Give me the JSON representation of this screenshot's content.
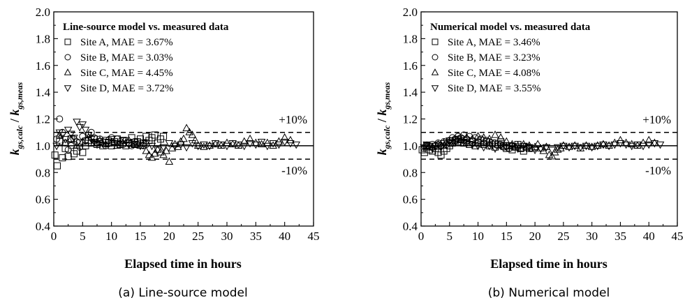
{
  "chart_data": [
    {
      "type": "scatter",
      "title": "Line-source model vs. measured data",
      "caption": "(a) Line-source model",
      "xlabel": "Elapsed time in hours",
      "ylabel_main": "k",
      "ylabel_sub1": "gs,calc",
      "ylabel_sep": " / ",
      "ylabel_sub2": "gs,meas",
      "xlim": [
        0,
        45
      ],
      "ylim": [
        0.4,
        2.0
      ],
      "xticks": [
        "0",
        "5",
        "10",
        "15",
        "20",
        "25",
        "30",
        "35",
        "40",
        "45"
      ],
      "yticks": [
        "0.4",
        "0.6",
        "0.8",
        "1.0",
        "1.2",
        "1.4",
        "1.6",
        "1.8",
        "2.0"
      ],
      "reference_lines": [
        {
          "y": 1.1,
          "style": "dashed",
          "label": "+10%"
        },
        {
          "y": 1.0,
          "style": "solid",
          "label": ""
        },
        {
          "y": 0.9,
          "style": "dashed",
          "label": "-10%"
        }
      ],
      "legend_position": "top-left",
      "series": [
        {
          "name": "Site A,  MAE = 3.67%",
          "marker": "square",
          "x": [
            0.2,
            0.6,
            1.0,
            1.5,
            2.0,
            2.5,
            3.0,
            3.5,
            4.0,
            4.5,
            5.0,
            5.5,
            6.0,
            6.5,
            7.0,
            7.5,
            8.0,
            8.5,
            9.0,
            9.5,
            10,
            10.5,
            11,
            11.5,
            12,
            12.5,
            13,
            13.5,
            14,
            14.5,
            15,
            15.5,
            16,
            16.5,
            17,
            17.5,
            18,
            18.5,
            19
          ],
          "y": [
            0.93,
            0.85,
            1.03,
            0.91,
            0.98,
            0.92,
            1.05,
            0.94,
            0.96,
            1.02,
            0.95,
            1.0,
            1.04,
            1.02,
            1.05,
            1.01,
            1.03,
            1.0,
            1.04,
            1.02,
            1.0,
            1.03,
            1.05,
            1.01,
            1.04,
            1.0,
            1.02,
            1.06,
            1.01,
            1.03,
            1.05,
            1.02,
            1.07,
            1.04,
            1.06,
            1.08,
            1.02,
            1.05,
            1.07
          ]
        },
        {
          "name": "Site B,  MAE = 3.03%",
          "marker": "circle",
          "x": [
            0.5,
            1.0,
            1.5,
            2.0,
            2.5,
            3.0,
            3.5,
            4.0,
            4.5,
            5.0,
            5.5,
            6.0,
            6.5,
            7.0,
            7.5,
            8.0,
            8.5,
            9.0,
            9.5,
            10,
            10.5,
            11,
            11.5,
            12,
            12.5,
            13,
            13.5,
            14,
            14.5,
            15,
            15.5,
            16
          ],
          "y": [
            1.05,
            1.2,
            1.1,
            1.02,
            0.97,
            1.0,
            1.05,
            1.03,
            0.99,
            1.07,
            1.04,
            1.08,
            1.1,
            1.06,
            1.02,
            1.05,
            1.03,
            1.0,
            1.04,
            1.06,
            1.02,
            1.05,
            1.03,
            1.01,
            1.04,
            1.02,
            1.0,
            1.03,
            1.01,
            1.02,
            1.0,
            1.01
          ]
        },
        {
          "name": "Site C,  MAE = 4.45%",
          "marker": "triangle-up",
          "x": [
            1.0,
            2.0,
            3.0,
            4.0,
            5.0,
            6.0,
            7.0,
            8.0,
            9.0,
            10,
            11,
            12,
            13,
            14,
            15,
            16,
            16.5,
            17,
            17.5,
            18,
            18.5,
            19,
            19.5,
            20,
            20.5,
            21,
            21.5,
            22,
            22.5,
            23,
            23.5,
            24,
            24.5,
            25,
            26,
            27,
            28,
            29,
            30,
            31,
            32,
            33,
            34,
            35,
            36,
            37,
            38,
            39,
            40,
            41
          ],
          "y": [
            1.08,
            1.02,
            1.05,
            1.0,
            1.03,
            1.06,
            1.02,
            1.04,
            1.01,
            1.03,
            1.0,
            1.02,
            1.04,
            1.01,
            1.0,
            0.96,
            0.93,
            0.91,
            0.94,
            0.97,
            0.95,
            0.93,
            0.96,
            0.88,
            0.98,
            1.01,
            0.99,
            1.03,
            1.05,
            1.13,
            1.1,
            1.08,
            1.04,
            1.0,
            0.99,
            1.0,
            1.01,
            1.0,
            1.02,
            1.01,
            1.0,
            1.03,
            1.05,
            1.02,
            1.01,
            1.02,
            1.0,
            1.03,
            1.06,
            1.04
          ]
        },
        {
          "name": "Site D,  MAE = 3.72%",
          "marker": "triangle-down",
          "x": [
            0.5,
            1.0,
            1.5,
            2.0,
            2.5,
            3.0,
            3.5,
            4.0,
            4.5,
            5.0,
            5.5,
            6.0,
            6.5,
            7.0,
            7.5,
            8.0,
            9.0,
            10,
            11,
            12,
            13,
            14,
            15,
            16,
            17,
            18,
            19,
            20,
            21,
            22,
            23,
            24,
            25,
            26,
            27,
            28,
            29,
            30,
            31,
            32,
            33,
            34,
            35,
            36,
            37,
            38,
            39,
            40,
            41,
            42
          ],
          "y": [
            1.0,
            1.1,
            1.08,
            1.05,
            1.12,
            1.09,
            1.06,
            1.18,
            1.14,
            1.16,
            1.12,
            1.08,
            1.05,
            1.03,
            1.01,
            1.02,
            1.03,
            1.05,
            1.02,
            1.04,
            1.01,
            1.03,
            1.0,
            1.02,
            1.0,
            0.97,
            0.99,
            1.02,
            1.0,
            1.01,
            0.99,
            1.02,
            1.0,
            1.01,
            1.0,
            1.02,
            1.01,
            1.0,
            1.02,
            1.01,
            1.0,
            1.02,
            1.01,
            1.03,
            1.0,
            1.02,
            1.01,
            1.03,
            1.02,
            1.01
          ]
        }
      ]
    },
    {
      "type": "scatter",
      "title": "Numerical model vs. measured data",
      "caption": "(b) Numerical model",
      "xlabel": "Elapsed time in hours",
      "ylabel_main": "k",
      "ylabel_sub1": "gs,calc",
      "ylabel_sep": " / ",
      "ylabel_sub2": "gs,meas",
      "xlim": [
        0,
        45
      ],
      "ylim": [
        0.4,
        2.0
      ],
      "xticks": [
        "0",
        "5",
        "10",
        "15",
        "20",
        "25",
        "30",
        "35",
        "40",
        "45"
      ],
      "yticks": [
        "0.4",
        "0.6",
        "0.8",
        "1.0",
        "1.2",
        "1.4",
        "1.6",
        "1.8",
        "2.0"
      ],
      "reference_lines": [
        {
          "y": 1.1,
          "style": "dashed",
          "label": "+10%"
        },
        {
          "y": 1.0,
          "style": "solid",
          "label": ""
        },
        {
          "y": 0.9,
          "style": "dashed",
          "label": "-10%"
        }
      ],
      "legend_position": "top-left",
      "series": [
        {
          "name": "Site A,  MAE = 3.46%",
          "marker": "square",
          "x": [
            0.2,
            0.6,
            1.0,
            1.5,
            2.0,
            2.5,
            3.0,
            3.5,
            4.0,
            4.5,
            5.0,
            5.5,
            6.0,
            6.5,
            7.0,
            7.5,
            8.0,
            8.5,
            9.0,
            9.5,
            10,
            10.5,
            11,
            11.5,
            12,
            12.5,
            13,
            13.5,
            14,
            14.5,
            15,
            15.5,
            16,
            16.5,
            17,
            17.5,
            18,
            18.5,
            19
          ],
          "y": [
            0.97,
            0.95,
            1.0,
            0.97,
            0.96,
            0.98,
            0.95,
            0.93,
            0.96,
            0.98,
            1.0,
            1.02,
            1.04,
            1.03,
            1.05,
            1.02,
            1.04,
            1.01,
            1.03,
            1.0,
            1.02,
            1.04,
            1.01,
            1.03,
            1.0,
            1.02,
            0.99,
            1.01,
            1.03,
            1.0,
            0.98,
            1.0,
            0.97,
            0.99,
            1.01,
            0.98,
            0.96,
            0.99,
            0.98
          ]
        },
        {
          "name": "Site B,  MAE = 3.23%",
          "marker": "circle",
          "x": [
            0.5,
            1.0,
            1.5,
            2.0,
            2.5,
            3.0,
            3.5,
            4.0,
            4.5,
            5.0,
            5.5,
            6.0,
            6.5,
            7.0,
            7.5,
            8.0,
            8.5,
            9.0,
            9.5,
            10,
            10.5,
            11,
            11.5,
            12,
            12.5,
            13,
            13.5,
            14,
            14.5,
            15,
            15.5,
            16
          ],
          "y": [
            0.98,
            1.0,
            0.99,
            1.01,
            1.0,
            1.02,
            1.0,
            1.03,
            1.01,
            1.04,
            1.06,
            1.05,
            1.07,
            1.06,
            1.08,
            1.05,
            1.07,
            1.04,
            1.06,
            1.03,
            1.05,
            1.02,
            1.04,
            1.03,
            1.01,
            1.02,
            1.0,
            1.01,
            0.99,
            1.0,
            0.98,
            1.0
          ]
        },
        {
          "name": "Site C,  MAE = 4.08%",
          "marker": "triangle-up",
          "x": [
            1.0,
            2.0,
            3.0,
            4.0,
            5.0,
            6.0,
            7.0,
            8.0,
            9.0,
            10,
            11,
            12,
            13,
            14,
            15,
            16,
            16.5,
            17,
            17.5,
            18,
            18.5,
            19,
            19.5,
            20,
            20.5,
            21,
            21.5,
            22,
            22.5,
            23,
            23.5,
            24,
            24.5,
            25,
            26,
            27,
            28,
            29,
            30,
            31,
            32,
            33,
            34,
            35,
            36,
            37,
            38,
            39,
            40,
            41
          ],
          "y": [
            1.0,
            0.99,
            1.01,
            1.0,
            1.03,
            1.05,
            1.04,
            1.06,
            1.05,
            1.07,
            1.06,
            1.05,
            1.08,
            1.06,
            1.03,
            1.01,
            0.99,
            1.0,
            0.98,
            1.01,
            0.99,
            1.0,
            0.98,
            0.99,
            1.01,
            0.98,
            0.96,
            0.99,
            0.93,
            0.92,
            0.95,
            0.97,
            0.98,
            1.0,
            0.99,
            1.0,
            0.98,
            1.0,
            0.99,
            1.0,
            1.01,
            1.0,
            1.02,
            1.04,
            1.02,
            1.01,
            1.0,
            1.02,
            1.04,
            1.02
          ]
        },
        {
          "name": "Site D,  MAE = 3.55%",
          "marker": "triangle-down",
          "x": [
            0.5,
            1.0,
            1.5,
            2.0,
            2.5,
            3.0,
            3.5,
            4.0,
            4.5,
            5.0,
            5.5,
            6.0,
            6.5,
            7.0,
            7.5,
            8.0,
            9.0,
            10,
            11,
            12,
            13,
            14,
            15,
            16,
            17,
            18,
            19,
            20,
            21,
            22,
            23,
            24,
            25,
            26,
            27,
            28,
            29,
            30,
            31,
            32,
            33,
            34,
            35,
            36,
            37,
            38,
            39,
            40,
            41,
            42
          ],
          "y": [
            0.99,
            1.01,
            1.0,
            0.98,
            1.0,
            1.01,
            0.99,
            1.02,
            1.03,
            1.04,
            1.02,
            1.03,
            1.05,
            1.04,
            1.03,
            1.02,
            1.01,
            1.0,
            0.99,
            1.0,
            0.98,
            1.0,
            0.99,
            1.0,
            0.98,
            1.0,
            0.99,
            0.97,
            0.98,
            0.99,
            0.97,
            0.99,
            1.0,
            0.99,
            1.0,
            0.99,
            1.0,
            0.99,
            1.0,
            1.01,
            1.0,
            1.01,
            1.02,
            1.01,
            1.0,
            1.01,
            1.0,
            1.01,
            1.02,
            1.01
          ]
        }
      ]
    }
  ]
}
